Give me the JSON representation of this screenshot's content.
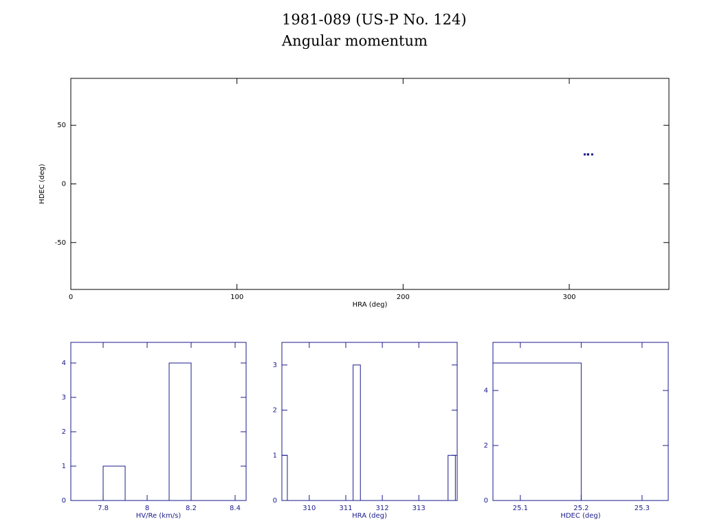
{
  "title": "1981-089 (US-P No. 124)",
  "subtitle": "Angular momentum",
  "chart_data": [
    {
      "type": "scatter",
      "x_label": "HRA (deg)",
      "y_label": "HDEC (deg)",
      "x": [
        309.3,
        311.3,
        311.3,
        311.3,
        313.8
      ],
      "values": [
        25.15,
        25.15,
        25.15,
        25.15,
        25.15
      ],
      "color": "#1a1a8c",
      "axis_color": "#000000",
      "xlim": [
        0,
        360
      ],
      "xticks": [
        0,
        100,
        200,
        300
      ],
      "ylim": [
        -90,
        90
      ],
      "yticks": [
        -50,
        0,
        50
      ]
    },
    {
      "type": "histogram",
      "x_label": "HV/Re (km/s)",
      "bins": [
        7.8,
        7.9,
        8.0,
        8.1,
        8.2
      ],
      "values": [
        1,
        0,
        0,
        4
      ],
      "color": "#1a1a8c",
      "axis_color": "#1a1a8c",
      "xlim": [
        7.653,
        8.45
      ],
      "xticks": [
        7.8,
        8,
        8.2,
        8.4
      ],
      "ylim": [
        0,
        4.6
      ],
      "yticks": [
        0,
        1,
        2,
        3,
        4
      ]
    },
    {
      "type": "histogram",
      "x_label": "HRA (deg)",
      "bins": [
        309.2,
        309.4,
        309.6,
        309.8,
        310.0,
        310.2,
        310.4,
        310.6,
        310.8,
        311.0,
        311.2,
        311.4,
        311.6,
        311.8,
        312.0,
        312.2,
        312.4,
        312.6,
        312.8,
        313.0,
        313.2,
        313.4,
        313.6,
        313.8,
        314.0
      ],
      "values": [
        1,
        0,
        0,
        0,
        0,
        0,
        0,
        0,
        0,
        0,
        3,
        0,
        0,
        0,
        0,
        0,
        0,
        0,
        0,
        0,
        0,
        0,
        0,
        1
      ],
      "color": "#1a1a8c",
      "axis_color": "#1a1a8c",
      "xlim": [
        309.25,
        314.05
      ],
      "xticks": [
        310,
        311,
        312,
        313
      ],
      "ylim": [
        0,
        3.5
      ],
      "yticks": [
        0,
        1,
        2,
        3
      ]
    },
    {
      "type": "histogram",
      "x_label": "HDEC (deg)",
      "bins": [
        25.05,
        25.2
      ],
      "values": [
        5
      ],
      "color": "#1a1a8c",
      "axis_color": "#1a1a8c",
      "xlim": [
        25.055,
        25.343
      ],
      "xticks": [
        25.1,
        25.2,
        25.3
      ],
      "ylim": [
        0,
        5.75
      ],
      "yticks": [
        0,
        2,
        4
      ]
    }
  ]
}
